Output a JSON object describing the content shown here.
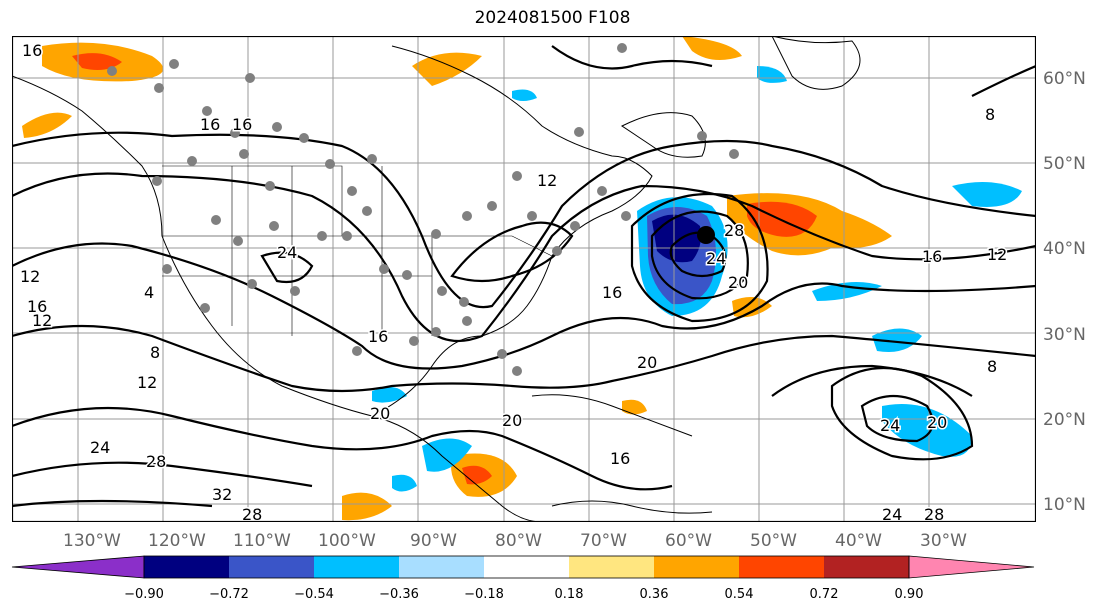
{
  "title": "2024081500 F108",
  "map": {
    "lon_labels": [
      "130°W",
      "120°W",
      "110°W",
      "100°W",
      "90°W",
      "80°W",
      "70°W",
      "60°W",
      "50°W",
      "40°W",
      "30°W"
    ],
    "lat_labels": [
      "60°N",
      "50°N",
      "40°N",
      "30°N",
      "20°N",
      "10°N"
    ],
    "contour_labels": [
      "16",
      "16",
      "12",
      "16",
      "4",
      "12",
      "8",
      "12",
      "16",
      "24",
      "28",
      "24",
      "20",
      "16",
      "20",
      "16",
      "8",
      "16",
      "12",
      "8",
      "20",
      "24",
      "20",
      "24",
      "28",
      "32",
      "28",
      "24",
      "28",
      "20",
      "16",
      "12"
    ],
    "gridline_color": "#999999",
    "contour_color": "#000000",
    "station_marker_color": "#808080",
    "cyclone_center_color": "#000000"
  },
  "colorbar": {
    "ticks": [
      "−0.90",
      "−0.72",
      "−0.54",
      "−0.36",
      "−0.18",
      "0.18",
      "0.36",
      "0.54",
      "0.72",
      "0.90"
    ],
    "colors": [
      "#8B2FC9",
      "#000080",
      "#3A55C8",
      "#00BFFF",
      "#A8DEFF",
      "#FFFFFF",
      "#FFE680",
      "#FFA500",
      "#FF4500",
      "#B22222",
      "#FF85B0"
    ],
    "extend": "both"
  }
}
